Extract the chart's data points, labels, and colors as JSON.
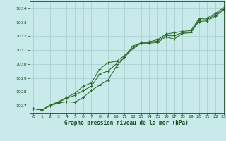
{
  "title": "Graphe pression niveau de la mer (hPa)",
  "background_color": "#c8eaea",
  "grid_color": "#a8cccc",
  "line_color": "#2d6b2d",
  "text_color": "#1a4a1a",
  "xlim": [
    -0.5,
    23
  ],
  "ylim": [
    1026.5,
    1034.5
  ],
  "yticks": [
    1027,
    1028,
    1029,
    1030,
    1031,
    1032,
    1033,
    1034
  ],
  "xticks": [
    0,
    1,
    2,
    3,
    4,
    5,
    6,
    7,
    8,
    9,
    10,
    11,
    12,
    13,
    14,
    15,
    16,
    17,
    18,
    19,
    20,
    21,
    22,
    23
  ],
  "series1": [
    [
      0,
      1026.8
    ],
    [
      1,
      1026.7
    ],
    [
      2,
      1027.0
    ],
    [
      3,
      1027.2
    ],
    [
      4,
      1027.3
    ],
    [
      5,
      1027.25
    ],
    [
      6,
      1027.6
    ],
    [
      7,
      1028.1
    ],
    [
      8,
      1028.5
    ],
    [
      9,
      1028.85
    ],
    [
      10,
      1029.8
    ],
    [
      11,
      1030.5
    ],
    [
      12,
      1031.3
    ],
    [
      13,
      1031.5
    ],
    [
      14,
      1031.5
    ],
    [
      15,
      1031.55
    ],
    [
      16,
      1031.95
    ],
    [
      17,
      1031.8
    ],
    [
      18,
      1032.2
    ],
    [
      19,
      1032.25
    ],
    [
      20,
      1033.05
    ],
    [
      21,
      1033.1
    ],
    [
      22,
      1033.45
    ],
    [
      23,
      1033.9
    ]
  ],
  "series2": [
    [
      0,
      1026.8
    ],
    [
      1,
      1026.7
    ],
    [
      2,
      1027.05
    ],
    [
      3,
      1027.25
    ],
    [
      4,
      1027.55
    ],
    [
      5,
      1027.75
    ],
    [
      6,
      1028.1
    ],
    [
      7,
      1028.4
    ],
    [
      8,
      1029.3
    ],
    [
      9,
      1029.5
    ],
    [
      10,
      1030.0
    ],
    [
      11,
      1030.5
    ],
    [
      12,
      1031.1
    ],
    [
      13,
      1031.5
    ],
    [
      14,
      1031.55
    ],
    [
      15,
      1031.65
    ],
    [
      16,
      1032.05
    ],
    [
      17,
      1032.05
    ],
    [
      18,
      1032.25
    ],
    [
      19,
      1032.3
    ],
    [
      20,
      1033.15
    ],
    [
      21,
      1033.2
    ],
    [
      22,
      1033.55
    ],
    [
      23,
      1033.95
    ]
  ],
  "series3": [
    [
      0,
      1026.8
    ],
    [
      1,
      1026.7
    ],
    [
      2,
      1027.05
    ],
    [
      3,
      1027.3
    ],
    [
      4,
      1027.6
    ],
    [
      5,
      1027.9
    ],
    [
      6,
      1028.4
    ],
    [
      7,
      1028.65
    ],
    [
      8,
      1029.65
    ],
    [
      9,
      1030.1
    ],
    [
      10,
      1030.2
    ],
    [
      11,
      1030.6
    ],
    [
      12,
      1031.15
    ],
    [
      13,
      1031.55
    ],
    [
      14,
      1031.6
    ],
    [
      15,
      1031.75
    ],
    [
      16,
      1032.15
    ],
    [
      17,
      1032.25
    ],
    [
      18,
      1032.35
    ],
    [
      19,
      1032.4
    ],
    [
      20,
      1033.25
    ],
    [
      21,
      1033.3
    ],
    [
      22,
      1033.65
    ],
    [
      23,
      1034.05
    ]
  ]
}
